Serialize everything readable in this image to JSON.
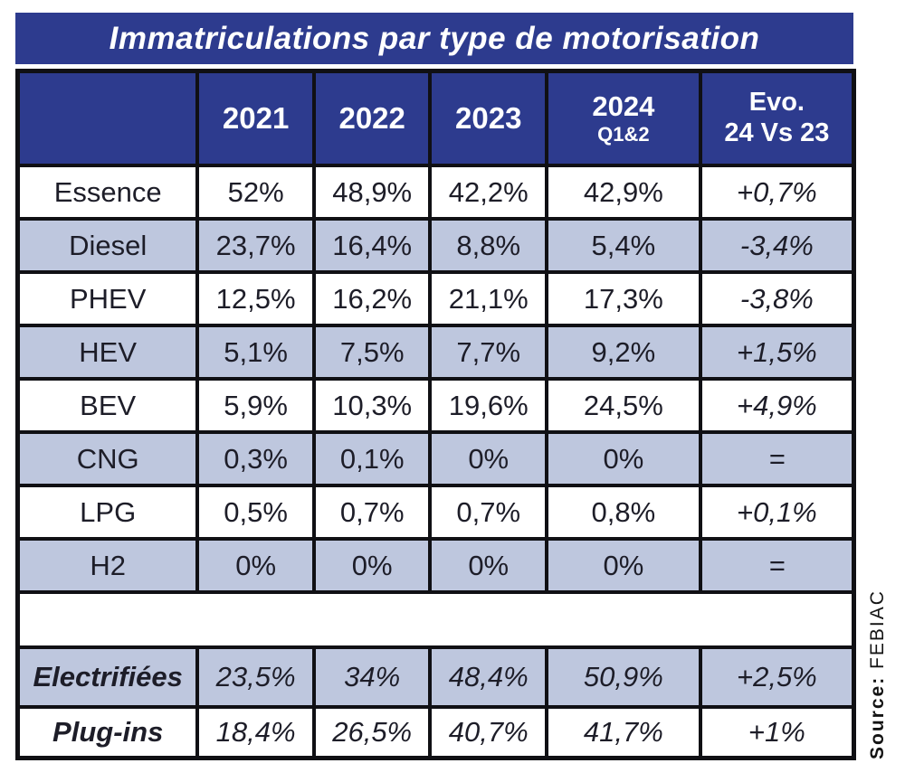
{
  "title": "Immatriculations par type de motorisation",
  "source": {
    "label": "Source:",
    "value": "FEBIAC"
  },
  "colors": {
    "header_bg": "#2d3b8e",
    "shaded_row_bg": "#bec7de",
    "white_row_bg": "#ffffff",
    "border": "#101014",
    "header_text": "#ffffff",
    "body_text": "#1d1d28"
  },
  "table": {
    "header": {
      "corner": "",
      "y2021": "2021",
      "y2022": "2022",
      "y2023": "2023",
      "y2024_line1": "2024",
      "y2024_line2": "Q1&2",
      "evo_line1": "Evo.",
      "evo_line2": "24 Vs 23"
    },
    "rows": [
      {
        "label": "Essence",
        "values": [
          "52%",
          "48,9%",
          "42,2%",
          "42,9%"
        ],
        "evo": "+0,7%",
        "shaded": false
      },
      {
        "label": "Diesel",
        "values": [
          "23,7%",
          "16,4%",
          "8,8%",
          "5,4%"
        ],
        "evo": "-3,4%",
        "shaded": true
      },
      {
        "label": "PHEV",
        "values": [
          "12,5%",
          "16,2%",
          "21,1%",
          "17,3%"
        ],
        "evo": "-3,8%",
        "shaded": false
      },
      {
        "label": "HEV",
        "values": [
          "5,1%",
          "7,5%",
          "7,7%",
          "9,2%"
        ],
        "evo": "+1,5%",
        "shaded": true
      },
      {
        "label": "BEV",
        "values": [
          "5,9%",
          "10,3%",
          "19,6%",
          "24,5%"
        ],
        "evo": "+4,9%",
        "shaded": false
      },
      {
        "label": "CNG",
        "values": [
          "0,3%",
          "0,1%",
          "0%",
          "0%"
        ],
        "evo": "=",
        "shaded": true
      },
      {
        "label": "LPG",
        "values": [
          "0,5%",
          "0,7%",
          "0,7%",
          "0,8%"
        ],
        "evo": "+0,1%",
        "shaded": false
      },
      {
        "label": "H2",
        "values": [
          "0%",
          "0%",
          "0%",
          "0%"
        ],
        "evo": "=",
        "shaded": true
      }
    ],
    "summary_rows": [
      {
        "label": "Electrifiées",
        "values": [
          "23,5%",
          "34%",
          "48,4%",
          "50,9%"
        ],
        "evo": "+2,5%",
        "shaded": true
      },
      {
        "label": "Plug-ins",
        "values": [
          "18,4%",
          "26,5%",
          "40,7%",
          "41,7%"
        ],
        "evo": "+1%",
        "shaded": false
      }
    ]
  },
  "chart_data": {
    "type": "table",
    "title": "Immatriculations par type de motorisation",
    "columns": [
      "",
      "2021",
      "2022",
      "2023",
      "2024 Q1&2",
      "Evo. 24 Vs 23"
    ],
    "rows": [
      [
        "Essence",
        "52%",
        "48,9%",
        "42,2%",
        "42,9%",
        "+0,7%"
      ],
      [
        "Diesel",
        "23,7%",
        "16,4%",
        "8,8%",
        "5,4%",
        "-3,4%"
      ],
      [
        "PHEV",
        "12,5%",
        "16,2%",
        "21,1%",
        "17,3%",
        "-3,8%"
      ],
      [
        "HEV",
        "5,1%",
        "7,5%",
        "7,7%",
        "9,2%",
        "+1,5%"
      ],
      [
        "BEV",
        "5,9%",
        "10,3%",
        "19,6%",
        "24,5%",
        "+4,9%"
      ],
      [
        "CNG",
        "0,3%",
        "0,1%",
        "0%",
        "0%",
        "="
      ],
      [
        "LPG",
        "0,5%",
        "0,7%",
        "0,7%",
        "0,8%",
        "+0,1%"
      ],
      [
        "H2",
        "0%",
        "0%",
        "0%",
        "0%",
        "="
      ],
      [
        "Electrifiées",
        "23,5%",
        "34%",
        "48,4%",
        "50,9%",
        "+2,5%"
      ],
      [
        "Plug-ins",
        "18,4%",
        "26,5%",
        "40,7%",
        "41,7%",
        "+1%"
      ]
    ],
    "source": "Source: FEBIAC",
    "legend_position": "none",
    "grid": true
  }
}
